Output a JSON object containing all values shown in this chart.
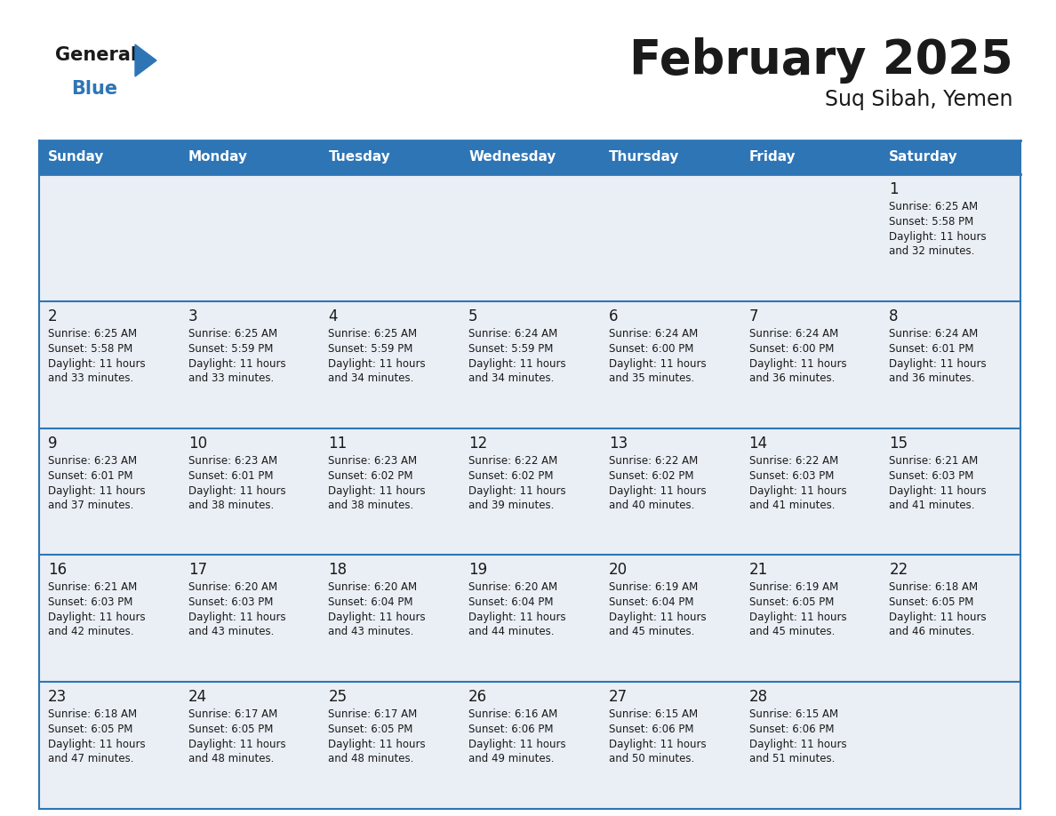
{
  "title": "February 2025",
  "subtitle": "Suq Sibah, Yemen",
  "header_color": "#2E75B6",
  "header_text_color": "#FFFFFF",
  "cell_bg_color": "#EAEFF5",
  "border_color": "#2E75B6",
  "text_color": "#1a1a1a",
  "day_names": [
    "Sunday",
    "Monday",
    "Tuesday",
    "Wednesday",
    "Thursday",
    "Friday",
    "Saturday"
  ],
  "logo_color1": "#1a1a1a",
  "logo_color2": "#2E75B6",
  "weeks": [
    [
      {
        "day": null,
        "sunrise": null,
        "sunset": null,
        "daylight": ""
      },
      {
        "day": null,
        "sunrise": null,
        "sunset": null,
        "daylight": ""
      },
      {
        "day": null,
        "sunrise": null,
        "sunset": null,
        "daylight": ""
      },
      {
        "day": null,
        "sunrise": null,
        "sunset": null,
        "daylight": ""
      },
      {
        "day": null,
        "sunrise": null,
        "sunset": null,
        "daylight": ""
      },
      {
        "day": null,
        "sunrise": null,
        "sunset": null,
        "daylight": ""
      },
      {
        "day": 1,
        "sunrise": "6:25 AM",
        "sunset": "5:58 PM",
        "daylight": "11 hours\nand 32 minutes."
      }
    ],
    [
      {
        "day": 2,
        "sunrise": "6:25 AM",
        "sunset": "5:58 PM",
        "daylight": "11 hours\nand 33 minutes."
      },
      {
        "day": 3,
        "sunrise": "6:25 AM",
        "sunset": "5:59 PM",
        "daylight": "11 hours\nand 33 minutes."
      },
      {
        "day": 4,
        "sunrise": "6:25 AM",
        "sunset": "5:59 PM",
        "daylight": "11 hours\nand 34 minutes."
      },
      {
        "day": 5,
        "sunrise": "6:24 AM",
        "sunset": "5:59 PM",
        "daylight": "11 hours\nand 34 minutes."
      },
      {
        "day": 6,
        "sunrise": "6:24 AM",
        "sunset": "6:00 PM",
        "daylight": "11 hours\nand 35 minutes."
      },
      {
        "day": 7,
        "sunrise": "6:24 AM",
        "sunset": "6:00 PM",
        "daylight": "11 hours\nand 36 minutes."
      },
      {
        "day": 8,
        "sunrise": "6:24 AM",
        "sunset": "6:01 PM",
        "daylight": "11 hours\nand 36 minutes."
      }
    ],
    [
      {
        "day": 9,
        "sunrise": "6:23 AM",
        "sunset": "6:01 PM",
        "daylight": "11 hours\nand 37 minutes."
      },
      {
        "day": 10,
        "sunrise": "6:23 AM",
        "sunset": "6:01 PM",
        "daylight": "11 hours\nand 38 minutes."
      },
      {
        "day": 11,
        "sunrise": "6:23 AM",
        "sunset": "6:02 PM",
        "daylight": "11 hours\nand 38 minutes."
      },
      {
        "day": 12,
        "sunrise": "6:22 AM",
        "sunset": "6:02 PM",
        "daylight": "11 hours\nand 39 minutes."
      },
      {
        "day": 13,
        "sunrise": "6:22 AM",
        "sunset": "6:02 PM",
        "daylight": "11 hours\nand 40 minutes."
      },
      {
        "day": 14,
        "sunrise": "6:22 AM",
        "sunset": "6:03 PM",
        "daylight": "11 hours\nand 41 minutes."
      },
      {
        "day": 15,
        "sunrise": "6:21 AM",
        "sunset": "6:03 PM",
        "daylight": "11 hours\nand 41 minutes."
      }
    ],
    [
      {
        "day": 16,
        "sunrise": "6:21 AM",
        "sunset": "6:03 PM",
        "daylight": "11 hours\nand 42 minutes."
      },
      {
        "day": 17,
        "sunrise": "6:20 AM",
        "sunset": "6:03 PM",
        "daylight": "11 hours\nand 43 minutes."
      },
      {
        "day": 18,
        "sunrise": "6:20 AM",
        "sunset": "6:04 PM",
        "daylight": "11 hours\nand 43 minutes."
      },
      {
        "day": 19,
        "sunrise": "6:20 AM",
        "sunset": "6:04 PM",
        "daylight": "11 hours\nand 44 minutes."
      },
      {
        "day": 20,
        "sunrise": "6:19 AM",
        "sunset": "6:04 PM",
        "daylight": "11 hours\nand 45 minutes."
      },
      {
        "day": 21,
        "sunrise": "6:19 AM",
        "sunset": "6:05 PM",
        "daylight": "11 hours\nand 45 minutes."
      },
      {
        "day": 22,
        "sunrise": "6:18 AM",
        "sunset": "6:05 PM",
        "daylight": "11 hours\nand 46 minutes."
      }
    ],
    [
      {
        "day": 23,
        "sunrise": "6:18 AM",
        "sunset": "6:05 PM",
        "daylight": "11 hours\nand 47 minutes."
      },
      {
        "day": 24,
        "sunrise": "6:17 AM",
        "sunset": "6:05 PM",
        "daylight": "11 hours\nand 48 minutes."
      },
      {
        "day": 25,
        "sunrise": "6:17 AM",
        "sunset": "6:05 PM",
        "daylight": "11 hours\nand 48 minutes."
      },
      {
        "day": 26,
        "sunrise": "6:16 AM",
        "sunset": "6:06 PM",
        "daylight": "11 hours\nand 49 minutes."
      },
      {
        "day": 27,
        "sunrise": "6:15 AM",
        "sunset": "6:06 PM",
        "daylight": "11 hours\nand 50 minutes."
      },
      {
        "day": 28,
        "sunrise": "6:15 AM",
        "sunset": "6:06 PM",
        "daylight": "11 hours\nand 51 minutes."
      },
      {
        "day": null,
        "sunrise": null,
        "sunset": null,
        "daylight": ""
      }
    ]
  ]
}
